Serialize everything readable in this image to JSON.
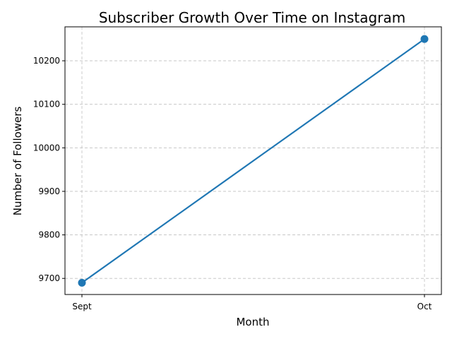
{
  "chart_data": {
    "type": "line",
    "title": "Subscriber Growth Over Time on Instagram",
    "xlabel": "Month",
    "ylabel": "Number of Followers",
    "categories": [
      "Sept",
      "Oct"
    ],
    "series": [
      {
        "values": [
          9690,
          10250
        ],
        "color": "#1f77b4"
      }
    ],
    "ylim": [
      9663,
      10278
    ],
    "yticks": [
      9700,
      9800,
      9900,
      10000,
      10100,
      10200
    ],
    "grid": true,
    "marker": "circle"
  }
}
